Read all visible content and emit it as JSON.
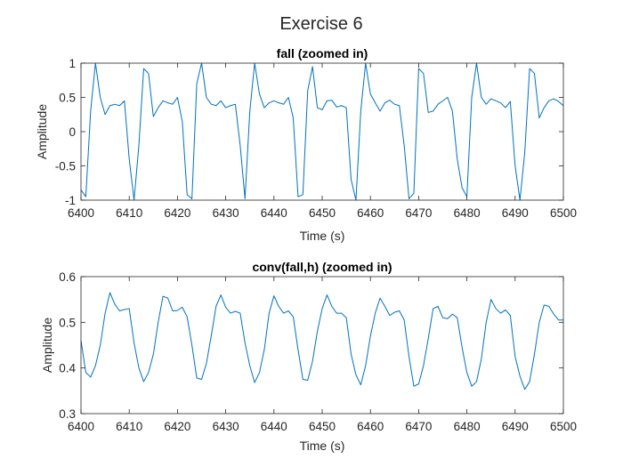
{
  "figure": {
    "title": "Exercise 6"
  },
  "colors": {
    "line": "#0072BD",
    "axes": "#262626",
    "background": "#ffffff"
  },
  "chart_data": [
    {
      "type": "line",
      "title": "fall (zoomed in)",
      "xlabel": "Time (s)",
      "ylabel": "Amplitude",
      "xlim": [
        6400,
        6500
      ],
      "ylim": [
        -1,
        1
      ],
      "xticks": [
        6400,
        6410,
        6420,
        6430,
        6440,
        6450,
        6460,
        6470,
        6480,
        6490,
        6500
      ],
      "yticks": [
        -1,
        -0.5,
        0,
        0.5,
        1
      ],
      "xtick_labels": [
        "6400",
        "6410",
        "6420",
        "6430",
        "6440",
        "6450",
        "6460",
        "6470",
        "6480",
        "6490",
        "6500"
      ],
      "ytick_labels": [
        "-1",
        "-0.5",
        "0",
        "0.5",
        "1"
      ],
      "grid": false,
      "series": [
        {
          "x": [
            6400,
            6401,
            6402,
            6403,
            6404,
            6405,
            6406,
            6407,
            6408,
            6409,
            6410,
            6411,
            6412,
            6413,
            6414,
            6415,
            6416,
            6417,
            6418,
            6419,
            6420,
            6421,
            6422,
            6423,
            6424,
            6425,
            6426,
            6427,
            6428,
            6429,
            6430,
            6431,
            6432,
            6433,
            6434,
            6435,
            6436,
            6437,
            6438,
            6439,
            6440,
            6441,
            6442,
            6443,
            6444,
            6445,
            6446,
            6447,
            6448,
            6449,
            6450,
            6451,
            6452,
            6453,
            6454,
            6455,
            6456,
            6457,
            6458,
            6459,
            6460,
            6461,
            6462,
            6463,
            6464,
            6465,
            6466,
            6467,
            6468,
            6469,
            6470,
            6471,
            6472,
            6473,
            6474,
            6475,
            6476,
            6477,
            6478,
            6479,
            6480,
            6481,
            6482,
            6483,
            6484,
            6485,
            6486,
            6487,
            6488,
            6489,
            6490,
            6491,
            6492,
            6493,
            6494,
            6495,
            6496,
            6497,
            6498,
            6499,
            6500
          ],
          "y": [
            -0.85,
            -0.95,
            0.3,
            1.0,
            0.5,
            0.25,
            0.38,
            0.4,
            0.38,
            0.45,
            -0.4,
            -1.0,
            -0.2,
            0.92,
            0.85,
            0.22,
            0.35,
            0.45,
            0.42,
            0.4,
            0.5,
            0.15,
            -0.92,
            -0.98,
            0.7,
            1.0,
            0.5,
            0.4,
            0.38,
            0.45,
            0.35,
            0.38,
            0.4,
            -0.2,
            -0.98,
            0.3,
            1.0,
            0.55,
            0.35,
            0.42,
            0.45,
            0.42,
            0.4,
            0.5,
            0.2,
            -0.95,
            -0.92,
            0.6,
            0.95,
            0.35,
            0.32,
            0.45,
            0.46,
            0.36,
            0.38,
            0.35,
            -0.7,
            -1.0,
            0.3,
            1.0,
            0.55,
            0.42,
            0.3,
            0.42,
            0.46,
            0.4,
            0.38,
            -0.2,
            -0.98,
            -0.9,
            0.92,
            0.85,
            0.28,
            0.3,
            0.4,
            0.45,
            0.5,
            0.3,
            -0.4,
            -0.82,
            -0.95,
            0.5,
            1.0,
            0.5,
            0.4,
            0.48,
            0.45,
            0.42,
            0.35,
            0.44,
            -0.5,
            -1.0,
            -0.3,
            0.92,
            0.85,
            0.2,
            0.35,
            0.45,
            0.48,
            0.44,
            0.38
          ]
        }
      ]
    },
    {
      "type": "line",
      "title": "conv(fall,h) (zoomed in)",
      "xlabel": "Time (s)",
      "ylabel": "Amplitude",
      "xlim": [
        6400,
        6500
      ],
      "ylim": [
        0.3,
        0.6
      ],
      "xticks": [
        6400,
        6410,
        6420,
        6430,
        6440,
        6450,
        6460,
        6470,
        6480,
        6490,
        6500
      ],
      "yticks": [
        0.3,
        0.4,
        0.5,
        0.6
      ],
      "xtick_labels": [
        "6400",
        "6410",
        "6420",
        "6430",
        "6440",
        "6450",
        "6460",
        "6470",
        "6480",
        "6490",
        "6500"
      ],
      "ytick_labels": [
        "0.3",
        "0.4",
        "0.5",
        "0.6"
      ],
      "grid": false,
      "series": [
        {
          "x": [
            6400,
            6401,
            6402,
            6403,
            6404,
            6405,
            6406,
            6407,
            6408,
            6409,
            6410,
            6411,
            6412,
            6413,
            6414,
            6415,
            6416,
            6417,
            6418,
            6419,
            6420,
            6421,
            6422,
            6423,
            6424,
            6425,
            6426,
            6427,
            6428,
            6429,
            6430,
            6431,
            6432,
            6433,
            6434,
            6435,
            6436,
            6437,
            6438,
            6439,
            6440,
            6441,
            6442,
            6443,
            6444,
            6445,
            6446,
            6447,
            6448,
            6449,
            6450,
            6451,
            6452,
            6453,
            6454,
            6455,
            6456,
            6457,
            6458,
            6459,
            6460,
            6461,
            6462,
            6463,
            6464,
            6465,
            6466,
            6467,
            6468,
            6469,
            6470,
            6471,
            6472,
            6473,
            6474,
            6475,
            6476,
            6477,
            6478,
            6479,
            6480,
            6481,
            6482,
            6483,
            6484,
            6485,
            6486,
            6487,
            6488,
            6489,
            6490,
            6491,
            6492,
            6493,
            6494,
            6495,
            6496,
            6497,
            6498,
            6499,
            6500
          ],
          "y": [
            0.46,
            0.39,
            0.38,
            0.405,
            0.45,
            0.52,
            0.565,
            0.54,
            0.525,
            0.528,
            0.53,
            0.455,
            0.4,
            0.37,
            0.39,
            0.43,
            0.5,
            0.557,
            0.553,
            0.525,
            0.526,
            0.533,
            0.512,
            0.45,
            0.378,
            0.375,
            0.41,
            0.47,
            0.535,
            0.56,
            0.533,
            0.52,
            0.524,
            0.52,
            0.455,
            0.405,
            0.368,
            0.39,
            0.44,
            0.52,
            0.558,
            0.535,
            0.52,
            0.525,
            0.512,
            0.44,
            0.375,
            0.373,
            0.415,
            0.48,
            0.53,
            0.56,
            0.535,
            0.52,
            0.52,
            0.51,
            0.43,
            0.385,
            0.363,
            0.405,
            0.47,
            0.52,
            0.553,
            0.535,
            0.515,
            0.522,
            0.525,
            0.505,
            0.425,
            0.36,
            0.365,
            0.405,
            0.465,
            0.53,
            0.535,
            0.51,
            0.508,
            0.518,
            0.51,
            0.445,
            0.39,
            0.36,
            0.37,
            0.42,
            0.5,
            0.55,
            0.53,
            0.52,
            0.527,
            0.515,
            0.425,
            0.382,
            0.353,
            0.37,
            0.43,
            0.5,
            0.538,
            0.535,
            0.518,
            0.505,
            0.505
          ]
        }
      ]
    }
  ]
}
